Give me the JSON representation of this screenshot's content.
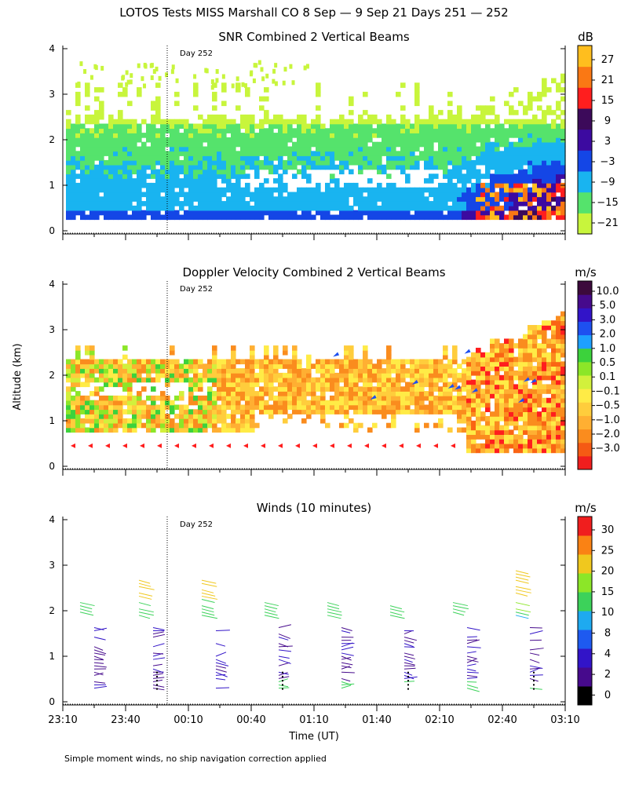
{
  "main_title": "LOTOS Tests MISS Marshall CO   8 Sep —  9 Sep 21 Days 251 — 252",
  "y_axis_label": "Altitude (km)",
  "x_axis_label": "Time (UT)",
  "day_marker_label": "Day 252",
  "footnote": "Simple moment winds, no ship navigation correction applied",
  "time_ticks": [
    "23:10",
    "23:40",
    "00:10",
    "00:40",
    "01:10",
    "01:40",
    "02:10",
    "02:40",
    "03:10"
  ],
  "altitude_ticks": [
    "0",
    "1",
    "2",
    "3",
    "4"
  ],
  "chart_data": [
    {
      "type": "heatmap",
      "title": "SNR Combined 2 Vertical Beams",
      "units": "dB",
      "xlabel": "Time (UT)",
      "ylabel": "Altitude (km)",
      "ylim": [
        0,
        4
      ],
      "colorbar_ticks": [
        "27",
        "21",
        "15",
        "9",
        "3",
        "−3",
        "−9",
        "−15",
        "−21"
      ],
      "colorbar_colors": [
        "#c8f53c",
        "#55e36c",
        "#19b4f0",
        "#1446e6",
        "#3c0aa0",
        "#3c0a5a",
        "#ff1e1e",
        "#fa7814",
        "#ffbe1e"
      ]
    },
    {
      "type": "heatmap",
      "title": "Doppler Velocity Combined 2 Vertical Beams",
      "units": "m/s",
      "xlabel": "Time (UT)",
      "ylabel": "Altitude (km)",
      "ylim": [
        0,
        4
      ],
      "colorbar_ticks": [
        "10.0",
        "5.0",
        "3.0",
        "2.0",
        "1.0",
        "0.5",
        "0.1",
        "−0.1",
        "−0.5",
        "−1.0",
        "−2.0",
        "−3.0"
      ],
      "colorbar_colors": [
        "#f01e1e",
        "#f55a14",
        "#fa8c1e",
        "#ffaf32",
        "#ffcd3c",
        "#ffeb46",
        "#d2f03c",
        "#8ce628",
        "#3cd23c",
        "#1ea0ff",
        "#1e50f0",
        "#3214c8",
        "#460a8c",
        "#3c0a3c"
      ]
    },
    {
      "type": "wind_barbs",
      "title": "Winds (10 minutes)",
      "units": "m/s",
      "xlabel": "Time (UT)",
      "ylabel": "Altitude (km)",
      "ylim": [
        0,
        4
      ],
      "colorbar_ticks": [
        "30",
        "25",
        "20",
        "15",
        "10",
        "8",
        "4",
        "2",
        "0"
      ],
      "colorbar_colors": [
        "#000000",
        "#460a8c",
        "#3214c8",
        "#1e5af0",
        "#1eaaf0",
        "#3cd25a",
        "#8ce628",
        "#f0c81e",
        "#fa8214",
        "#f01e1e"
      ]
    }
  ]
}
